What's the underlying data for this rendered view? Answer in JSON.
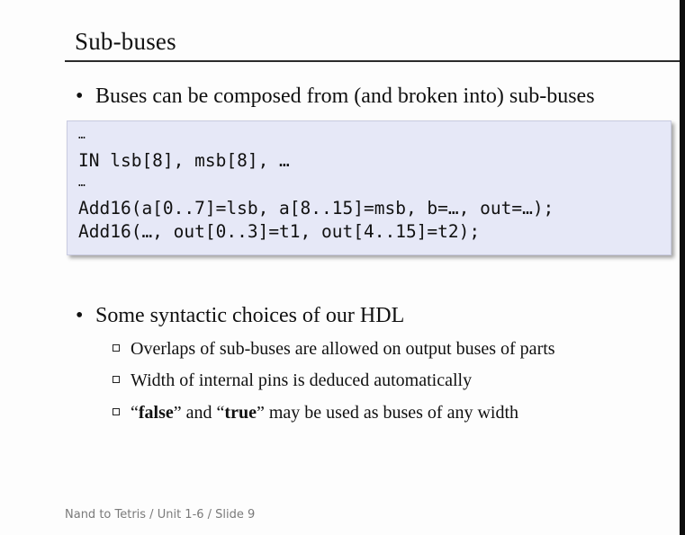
{
  "slide": {
    "title": "Sub-buses",
    "bullets": [
      {
        "symbol": "•",
        "text": "Buses can be composed from (and broken into) sub-buses"
      },
      {
        "symbol": "•",
        "text": "Some syntactic choices of our HDL"
      }
    ],
    "code_lines": [
      "…",
      "IN lsb[8], msb[8], …",
      "…",
      "Add16(a[0..7]=lsb, a[8..15]=msb, b=…, out=…);",
      "Add16(…, out[0..3]=t1, out[4..15]=t2);"
    ],
    "sub_bullets": [
      {
        "text": "Overlaps of sub-buses are allowed on output buses of parts"
      },
      {
        "text": "Width of internal pins is deduced automatically"
      },
      {
        "q1": "“",
        "b1": "false",
        "mid": "” and “",
        "b2": "true",
        "rest": "” may be used as buses of any width"
      }
    ],
    "footer": "Nand to Tetris / Unit 1-6 / Slide 9"
  }
}
